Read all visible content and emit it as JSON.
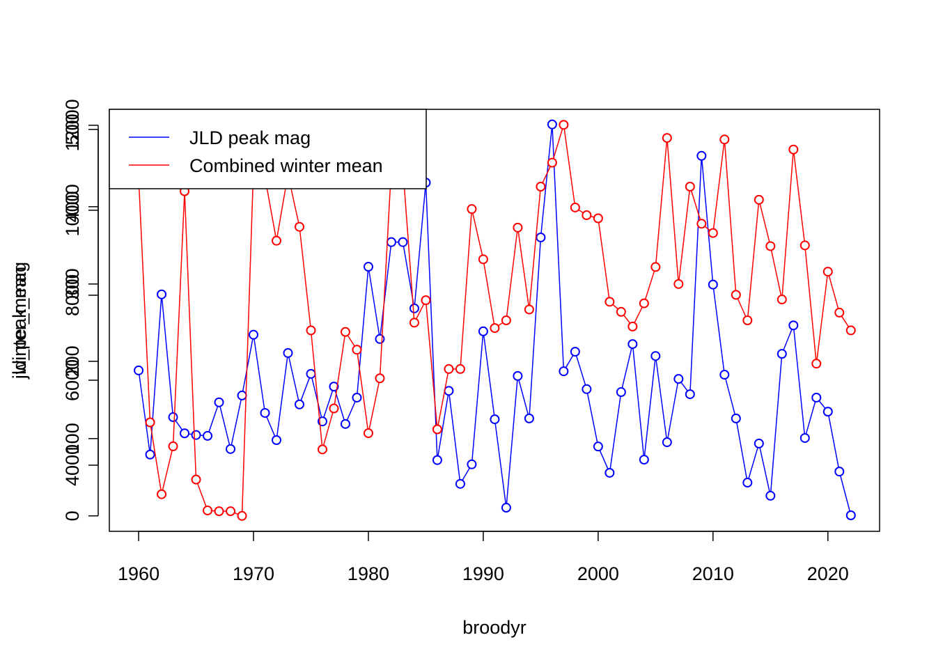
{
  "chart_data": {
    "type": "line",
    "x_label": "broodyr",
    "y_label": "jld_peak_mag",
    "y2_label": "winter_mean",
    "x": [
      1960,
      1961,
      1962,
      1963,
      1964,
      1965,
      1966,
      1967,
      1968,
      1969,
      1970,
      1971,
      1972,
      1973,
      1974,
      1975,
      1976,
      1977,
      1978,
      1979,
      1980,
      1981,
      1982,
      1983,
      1984,
      1985,
      1986,
      1987,
      1988,
      1989,
      1990,
      1991,
      1992,
      1993,
      1994,
      1995,
      1996,
      1997,
      1998,
      1999,
      2000,
      2001,
      2002,
      2003,
      2004,
      2005,
      2006,
      2007,
      2008,
      2009,
      2010,
      2011,
      2012,
      2013,
      2014,
      2015,
      2016,
      2017,
      2018,
      2019,
      2020,
      2021,
      2022
    ],
    "series": [
      {
        "name": "JLD peak mag",
        "color": "#0000ff",
        "axis": "y",
        "values": [
          6230,
          4250,
          8020,
          5130,
          4750,
          4710,
          4690,
          5480,
          4380,
          5640,
          7070,
          5230,
          4590,
          6640,
          5430,
          6150,
          5030,
          5850,
          4970,
          5590,
          8670,
          6970,
          9250,
          9250,
          7690,
          10650,
          4120,
          5750,
          3560,
          4020,
          7150,
          5080,
          3000,
          6100,
          5100,
          9360,
          12020,
          6210,
          6670,
          5790,
          4440,
          3820,
          5720,
          6850,
          4130,
          6570,
          4540,
          6030,
          5670,
          11280,
          8250,
          6130,
          5100,
          3590,
          4510,
          3280,
          6620,
          7290,
          4640,
          5590,
          5260,
          3850,
          2820
        ]
      },
      {
        "name": "Combined winter mean",
        "color": "#ff0000",
        "axis": "y2",
        "values": [
          438,
          121,
          28,
          90,
          420,
          47,
          7,
          6,
          6,
          0,
          451,
          438,
          356,
          442,
          374,
          240,
          86,
          139,
          238,
          215,
          107,
          178,
          451,
          451,
          250,
          279,
          112,
          190,
          190,
          397,
          332,
          243,
          253,
          373,
          267,
          426,
          457,
          506,
          399,
          389,
          385,
          277,
          264,
          245,
          275,
          322,
          489,
          300,
          426,
          378,
          366,
          487,
          286,
          253,
          409,
          349,
          280,
          474,
          350,
          197,
          316,
          263,
          240
        ]
      }
    ],
    "xlim": [
      1957.45,
      2024.5
    ],
    "xticks": [
      1960,
      1970,
      1980,
      1990,
      2000,
      2010,
      2020
    ],
    "ylim": [
      2443,
      12375
    ],
    "yticks": [
      4000,
      6000,
      8000,
      10000,
      12000
    ],
    "y2lim": [
      -20,
      526
    ],
    "y2ticks": [
      0,
      100,
      200,
      300,
      400,
      500
    ],
    "legend": "top-left",
    "markers": "open-circle"
  }
}
